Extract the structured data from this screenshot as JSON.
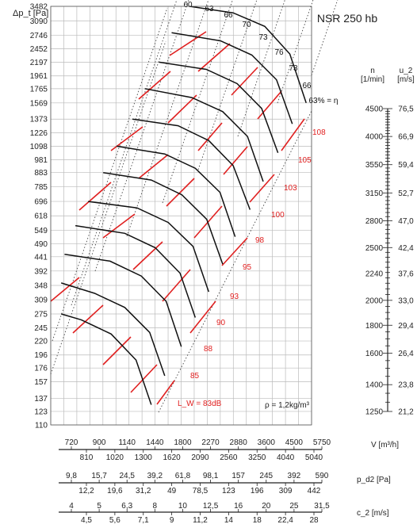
{
  "chart_data": {
    "type": "line",
    "title": "NSR 250 hb",
    "ylabel": "Δp_t [Pa]",
    "xlabel": "V [m³/h]",
    "y_scale": "log",
    "x_scale": "log",
    "grid": true,
    "y_ticks": [
      "3482",
      "3090",
      "2746",
      "2452",
      "2197",
      "1961",
      "1765",
      "1569",
      "1373",
      "1226",
      "1098",
      "981",
      "883",
      "785",
      "696",
      "618",
      "549",
      "490",
      "441",
      "392",
      "348",
      "309",
      "275",
      "245",
      "220",
      "196",
      "176",
      "157",
      "137",
      "123",
      "110"
    ],
    "x_axis_top": [
      "720",
      "900",
      "1140",
      "1440",
      "1800",
      "2270",
      "2880",
      "3600",
      "4500",
      "5750"
    ],
    "x_axis_bottom": [
      "810",
      "1020",
      "1300",
      "1620",
      "2090",
      "2560",
      "3250",
      "4040",
      "5040"
    ],
    "x_axis_unit": "V [m³/h]",
    "pd2_top": [
      "9,8",
      "15,7",
      "24,5",
      "39,2",
      "61,8",
      "98,1",
      "157",
      "245",
      "392",
      "590"
    ],
    "pd2_bottom": [
      "12,2",
      "19,6",
      "31,2",
      "49",
      "78,5",
      "123",
      "196",
      "309",
      "442"
    ],
    "pd2_unit": "p_d2 [Pa]",
    "c2_top": [
      "4",
      "5",
      "6,3",
      "8",
      "10",
      "12,5",
      "16",
      "20",
      "25",
      "31,5"
    ],
    "c2_bottom": [
      "4,5",
      "5,6",
      "7,1",
      "9",
      "11,2",
      "14",
      "18",
      "22,4",
      "28"
    ],
    "c2_unit": "c_2 [m/s]",
    "n_header": "n",
    "n_unit": "[1/min]",
    "u2_header": "u_2",
    "u2_unit": "[m/s]",
    "n_values": [
      "4500",
      "4000",
      "3550",
      "3150",
      "2800",
      "2500",
      "2240",
      "2000",
      "1800",
      "1600",
      "1400",
      "1250"
    ],
    "u2_values": [
      "76,5",
      "66,9",
      "59,4",
      "52,7",
      "47,0",
      "42,4",
      "37,6",
      "33,0",
      "29,4",
      "26,4",
      "23,8",
      "21,2"
    ],
    "efficiency_labels": [
      "60",
      "63",
      "66",
      "70",
      "73",
      "76",
      "73",
      "66",
      "63% = η"
    ],
    "sound_labels": [
      "108",
      "105",
      "103",
      "100",
      "98",
      "95",
      "93",
      "90",
      "88",
      "85",
      "L_W = 83dB"
    ],
    "density_note": "ρ = 1,2kg/m³",
    "series": [
      {
        "name": "4500",
        "x": [
          2090,
          3000,
          3900,
          4800,
          5500
        ],
        "y": [
          3482,
          3300,
          2950,
          2350,
          1569
        ]
      },
      {
        "name": "4000",
        "x": [
          1800,
          2700,
          3500,
          4300,
          4900
        ],
        "y": [
          2800,
          2620,
          2330,
          1900,
          1320
        ]
      },
      {
        "name": "3550",
        "x": [
          1620,
          2400,
          3100,
          3800,
          4350
        ],
        "y": [
          2197,
          2070,
          1840,
          1500,
          1040
        ]
      },
      {
        "name": "3150",
        "x": [
          1440,
          2130,
          2750,
          3380,
          3850
        ],
        "y": [
          1765,
          1640,
          1460,
          1190,
          820
        ]
      },
      {
        "name": "2800",
        "x": [
          1300,
          1900,
          2450,
          3000,
          3450
        ],
        "y": [
          1373,
          1300,
          1150,
          935,
          650
        ]
      },
      {
        "name": "2500",
        "x": [
          1140,
          1700,
          2190,
          2690,
          3050
        ],
        "y": [
          1098,
          1030,
          915,
          750,
          520
        ]
      },
      {
        "name": "2240",
        "x": [
          1020,
          1520,
          1960,
          2410,
          2750
        ],
        "y": [
          883,
          830,
          735,
          600,
          415
        ]
      },
      {
        "name": "2000",
        "x": [
          900,
          1350,
          1750,
          2150,
          2450
        ],
        "y": [
          696,
          660,
          585,
          480,
          330
        ]
      },
      {
        "name": "1800",
        "x": [
          810,
          1220,
          1570,
          1930,
          2190
        ],
        "y": [
          570,
          535,
          475,
          385,
          267
        ]
      },
      {
        "name": "1600",
        "x": [
          740,
          1080,
          1400,
          1720,
          1950
        ],
        "y": [
          450,
          425,
          376,
          305,
          210
        ]
      },
      {
        "name": "1400",
        "x": [
          720,
          950,
          1220,
          1500,
          1700
        ],
        "y": [
          355,
          326,
          290,
          236,
          165
        ]
      },
      {
        "name": "1250",
        "x": [
          720,
          850,
          1090,
          1340,
          1520
        ],
        "y": [
          275,
          262,
          233,
          188,
          130
        ]
      }
    ]
  }
}
